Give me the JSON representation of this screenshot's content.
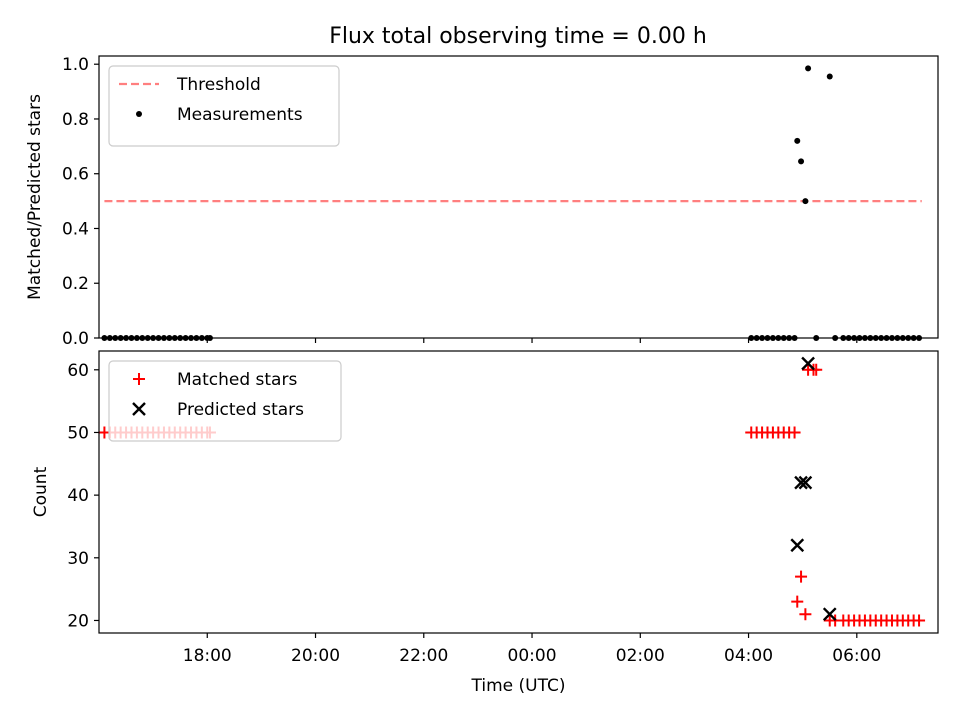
{
  "chart_data": [
    {
      "type": "scatter",
      "title": "Flux total observing time = 0.00 h",
      "xlabel": "",
      "ylabel": "Matched/Predicted stars",
      "xlim": [
        -1.0,
        14.5
      ],
      "ylim": [
        0.0,
        1.03
      ],
      "x_ticks": [
        {
          "value": 1,
          "label": "18:00"
        },
        {
          "value": 3,
          "label": "20:00"
        },
        {
          "value": 5,
          "label": "22:00"
        },
        {
          "value": 7,
          "label": "00:00"
        },
        {
          "value": 9,
          "label": "02:00"
        },
        {
          "value": 11,
          "label": "04:00"
        },
        {
          "value": 13,
          "label": "06:00"
        }
      ],
      "y_ticks": [
        {
          "value": 0.0,
          "label": "0.0"
        },
        {
          "value": 0.2,
          "label": "0.2"
        },
        {
          "value": 0.4,
          "label": "0.4"
        },
        {
          "value": 0.6,
          "label": "0.6"
        },
        {
          "value": 0.8,
          "label": "0.8"
        },
        {
          "value": 1.0,
          "label": "1.0"
        }
      ],
      "grid": false,
      "legend_position": "top-left",
      "threshold": {
        "name": "Threshold",
        "x": [
          -0.9,
          14.2
        ],
        "y": 0.5,
        "color": "#ff7f7f"
      },
      "series": [
        {
          "name": "Measurements",
          "marker": "dot",
          "color": "#000000",
          "x": [
            -0.9,
            -0.8,
            -0.7,
            -0.6,
            -0.5,
            -0.4,
            -0.3,
            -0.2,
            -0.1,
            0.0,
            0.1,
            0.2,
            0.3,
            0.4,
            0.5,
            0.6,
            0.7,
            0.8,
            0.9,
            1.0,
            1.05,
            11.05,
            11.15,
            11.25,
            11.35,
            11.45,
            11.55,
            11.65,
            11.75,
            11.85,
            11.9,
            11.97,
            12.05,
            12.1,
            12.25,
            12.5,
            12.6,
            12.75,
            12.85,
            12.95,
            13.05,
            13.15,
            13.25,
            13.35,
            13.45,
            13.55,
            13.65,
            13.75,
            13.85,
            13.95,
            14.05,
            14.15
          ],
          "y": [
            0,
            0,
            0,
            0,
            0,
            0,
            0,
            0,
            0,
            0,
            0,
            0,
            0,
            0,
            0,
            0,
            0,
            0,
            0,
            0,
            0,
            0,
            0,
            0,
            0,
            0,
            0,
            0,
            0,
            0,
            0.72,
            0.645,
            0.5,
            0.985,
            0,
            0.955,
            0,
            0,
            0,
            0,
            0,
            0,
            0,
            0,
            0,
            0,
            0,
            0,
            0,
            0,
            0,
            0
          ]
        }
      ]
    },
    {
      "type": "scatter",
      "title": "",
      "xlabel": "Time (UTC)",
      "ylabel": "Count",
      "xlim": [
        -1.0,
        14.5
      ],
      "ylim": [
        18.0,
        63.0
      ],
      "x_ticks": [
        {
          "value": 1,
          "label": "18:00"
        },
        {
          "value": 3,
          "label": "20:00"
        },
        {
          "value": 5,
          "label": "22:00"
        },
        {
          "value": 7,
          "label": "00:00"
        },
        {
          "value": 9,
          "label": "02:00"
        },
        {
          "value": 11,
          "label": "04:00"
        },
        {
          "value": 13,
          "label": "06:00"
        }
      ],
      "y_ticks": [
        {
          "value": 20,
          "label": "20"
        },
        {
          "value": 30,
          "label": "30"
        },
        {
          "value": 40,
          "label": "40"
        },
        {
          "value": 50,
          "label": "50"
        },
        {
          "value": 60,
          "label": "60"
        }
      ],
      "grid": false,
      "legend_position": "top-left",
      "series": [
        {
          "name": "Matched stars",
          "marker": "plus",
          "color": "#ff0000",
          "x": [
            -0.9,
            -0.8,
            -0.7,
            -0.6,
            -0.5,
            -0.4,
            -0.3,
            -0.2,
            -0.1,
            0.0,
            0.1,
            0.2,
            0.3,
            0.4,
            0.5,
            0.6,
            0.7,
            0.8,
            0.9,
            1.0,
            1.05,
            11.05,
            11.15,
            11.25,
            11.35,
            11.45,
            11.55,
            11.65,
            11.75,
            11.85,
            11.9,
            11.97,
            12.05,
            12.1,
            12.2,
            12.25,
            12.5,
            12.6,
            12.75,
            12.85,
            12.95,
            13.05,
            13.15,
            13.25,
            13.35,
            13.45,
            13.55,
            13.65,
            13.75,
            13.85,
            13.95,
            14.05,
            14.15
          ],
          "y": [
            50,
            50,
            50,
            50,
            50,
            50,
            50,
            50,
            50,
            50,
            50,
            50,
            50,
            50,
            50,
            50,
            50,
            50,
            50,
            50,
            50,
            50,
            50,
            50,
            50,
            50,
            50,
            50,
            50,
            50,
            23,
            27,
            21,
            60,
            60,
            60,
            20,
            20,
            20,
            20,
            20,
            20,
            20,
            20,
            20,
            20,
            20,
            20,
            20,
            20,
            20,
            20,
            20
          ]
        },
        {
          "name": "Predicted stars",
          "marker": "cross",
          "color": "#000000",
          "x": [
            11.9,
            11.97,
            12.05,
            12.1,
            12.5
          ],
          "y": [
            32,
            42,
            42,
            61,
            21
          ]
        }
      ]
    }
  ]
}
